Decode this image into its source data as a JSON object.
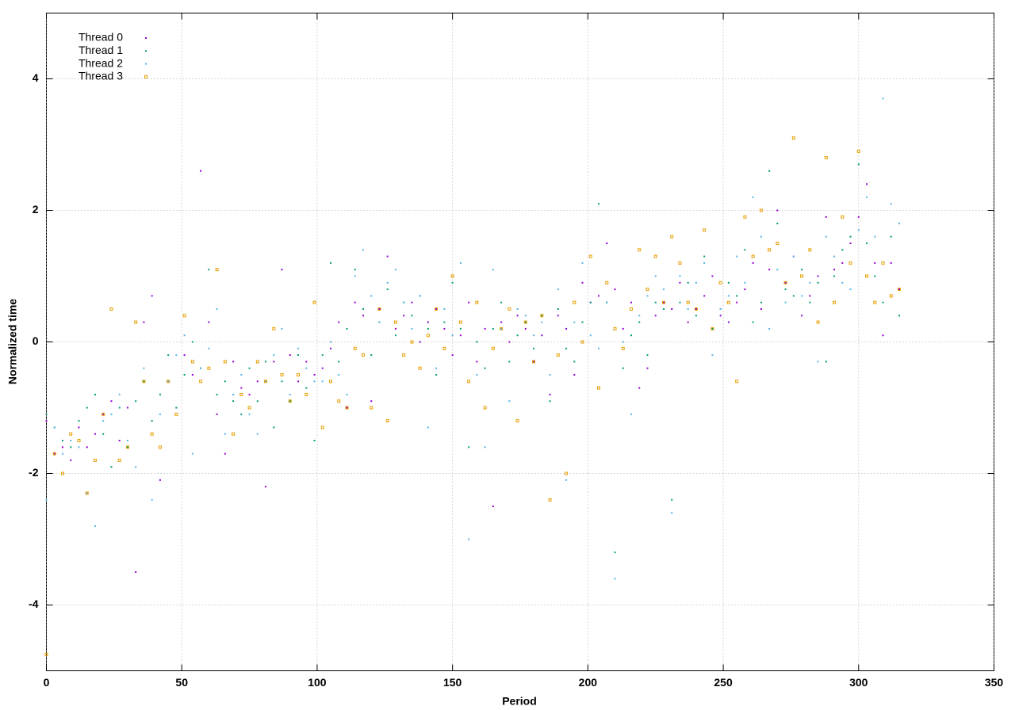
{
  "chart_data": {
    "type": "scatter",
    "xlabel": "Period",
    "ylabel": "Normalized time",
    "xlim": [
      0,
      350
    ],
    "ylim": [
      -5,
      5
    ],
    "xticks": [
      0,
      50,
      100,
      150,
      200,
      250,
      300,
      350
    ],
    "yticks": [
      -4,
      -2,
      0,
      2,
      4
    ],
    "grid": true,
    "legend": "upper-left",
    "x": [
      0,
      3,
      6,
      9,
      12,
      15,
      18,
      21,
      24,
      27,
      30,
      33,
      36,
      39,
      42,
      45,
      48,
      51,
      54,
      57,
      60,
      63,
      66,
      69,
      72,
      75,
      78,
      81,
      84,
      87,
      90,
      93,
      96,
      99,
      102,
      105,
      108,
      111,
      114,
      117,
      120,
      123,
      126,
      129,
      132,
      135,
      138,
      141,
      144,
      147,
      150,
      153,
      156,
      159,
      162,
      165,
      168,
      171,
      174,
      177,
      180,
      183,
      186,
      189,
      192,
      195,
      198,
      201,
      204,
      207,
      210,
      213,
      216,
      219,
      222,
      225,
      228,
      231,
      234,
      237,
      240,
      243,
      246,
      249,
      252,
      255,
      258,
      261,
      264,
      267,
      270,
      273,
      276,
      279,
      282,
      285,
      288,
      291,
      294,
      297,
      300,
      303,
      306,
      309,
      312,
      315
    ],
    "series": [
      {
        "name": "Thread 0",
        "color": "#9400d3",
        "marker": "dot",
        "values": [
          -1.2,
          -1.7,
          -1.6,
          -1.8,
          -1.3,
          -1.6,
          -1.4,
          -1.1,
          -0.9,
          -1.5,
          -1.0,
          -3.5,
          0.3,
          0.7,
          -2.1,
          -0.6,
          -1.0,
          -0.2,
          -0.5,
          2.6,
          0.3,
          -1.1,
          -1.7,
          -0.3,
          -0.7,
          -0.8,
          -0.6,
          -2.2,
          -0.3,
          1.1,
          -0.2,
          -0.6,
          -0.3,
          -0.5,
          -0.4,
          -0.1,
          0.3,
          -1.0,
          0.6,
          0.4,
          -0.9,
          0.5,
          1.3,
          0.2,
          0.4,
          0.6,
          0.0,
          0.3,
          0.5,
          0.2,
          -0.2,
          0.1,
          0.6,
          -0.3,
          0.2,
          -2.5,
          0.3,
          0.0,
          0.4,
          0.2,
          -0.3,
          0.1,
          -0.8,
          0.4,
          0.2,
          -0.5,
          0.9,
          0.6,
          0.7,
          1.5,
          0.8,
          0.2,
          0.6,
          -0.7,
          -0.4,
          0.4,
          0.6,
          0.5,
          0.9,
          0.3,
          0.5,
          0.7,
          1.0,
          0.4,
          0.3,
          0.6,
          0.8,
          1.2,
          0.5,
          1.1,
          2.0,
          0.9,
          1.3,
          0.4,
          0.7,
          1.0,
          1.9,
          1.1,
          1.2,
          1.5,
          1.9,
          2.4,
          1.2,
          0.1,
          1.2,
          0.8
        ]
      },
      {
        "name": "Thread 1",
        "color": "#009e73",
        "marker": "dot",
        "values": [
          -1.1,
          -1.3,
          -1.5,
          -1.6,
          -1.2,
          -1.0,
          -0.8,
          -1.4,
          -1.9,
          -1.0,
          -1.6,
          -0.9,
          -0.6,
          -1.2,
          -0.8,
          -0.2,
          -1.0,
          -0.5,
          0.0,
          -0.4,
          1.1,
          -0.8,
          -0.6,
          -0.9,
          -1.1,
          -0.4,
          -0.9,
          -0.3,
          -1.3,
          -0.6,
          -0.9,
          -0.2,
          -0.7,
          -1.5,
          -0.2,
          1.2,
          -0.3,
          0.2,
          1.1,
          0.5,
          -0.2,
          0.3,
          0.8,
          0.1,
          0.6,
          0.4,
          0.7,
          0.2,
          -0.5,
          0.3,
          0.9,
          0.2,
          -1.6,
          0.0,
          -0.4,
          0.2,
          0.6,
          -0.3,
          0.1,
          0.3,
          -0.1,
          0.4,
          -0.9,
          0.5,
          -0.1,
          -0.3,
          0.3,
          0.6,
          2.1,
          0.6,
          -3.2,
          -0.4,
          0.1,
          0.3,
          -0.2,
          0.6,
          0.5,
          -2.4,
          0.6,
          0.9,
          0.4,
          1.3,
          0.2,
          0.5,
          0.9,
          0.7,
          1.4,
          0.3,
          0.6,
          2.6,
          1.8,
          0.8,
          0.7,
          1.1,
          0.6,
          0.9,
          -0.3,
          1.0,
          1.4,
          1.6,
          2.7,
          1.5,
          1.0,
          0.6,
          1.6,
          0.4
        ]
      },
      {
        "name": "Thread 2",
        "color": "#56b4e9",
        "marker": "dot",
        "values": [
          -2.4,
          -1.3,
          -1.7,
          -1.5,
          -1.6,
          -2.3,
          -2.8,
          -1.2,
          -1.1,
          -0.8,
          -1.5,
          -1.9,
          -0.4,
          -2.4,
          -1.1,
          -0.6,
          -0.2,
          0.1,
          -1.7,
          -0.4,
          -0.1,
          0.5,
          -1.4,
          -0.8,
          -0.5,
          -1.1,
          -1.4,
          -0.6,
          -0.2,
          0.2,
          -0.8,
          -0.1,
          -0.4,
          -0.6,
          -0.6,
          0.0,
          -0.5,
          -0.8,
          1.0,
          1.4,
          0.7,
          0.3,
          0.9,
          1.1,
          0.6,
          0.2,
          0.7,
          -1.3,
          -0.4,
          0.5,
          0.1,
          1.2,
          -3.0,
          -0.5,
          -1.6,
          1.1,
          0.2,
          -0.9,
          0.5,
          0.4,
          0.1,
          0.3,
          -0.5,
          0.8,
          -2.1,
          0.3,
          1.2,
          0.1,
          -0.1,
          0.6,
          -3.6,
          0.0,
          -1.1,
          0.4,
          0.7,
          1.0,
          0.8,
          -2.6,
          1.0,
          0.5,
          0.9,
          1.2,
          -0.2,
          0.5,
          0.7,
          1.3,
          0.9,
          2.2,
          1.6,
          0.2,
          1.1,
          0.6,
          1.3,
          0.7,
          0.9,
          -0.3,
          1.6,
          1.3,
          0.9,
          0.8,
          1.7,
          2.2,
          1.6,
          3.7,
          2.1,
          1.8
        ]
      },
      {
        "name": "Thread 3",
        "color": "#e69f00",
        "marker": "square",
        "values": [
          -4.75,
          -1.7,
          -2.0,
          -1.4,
          -1.5,
          -2.3,
          -1.8,
          -1.1,
          0.5,
          -1.8,
          -1.6,
          0.3,
          -0.6,
          -1.4,
          -1.6,
          -0.6,
          -1.1,
          0.4,
          -0.3,
          -0.6,
          -0.4,
          1.1,
          -0.3,
          -1.4,
          -0.8,
          -1.0,
          -0.3,
          -0.6,
          0.2,
          -0.5,
          -0.9,
          -0.5,
          -0.8,
          0.6,
          -1.3,
          -0.6,
          -0.9,
          -1.0,
          -0.1,
          -0.2,
          -1.0,
          0.5,
          -1.2,
          0.3,
          -0.2,
          0.0,
          -0.4,
          0.1,
          0.5,
          -0.1,
          1.0,
          0.3,
          -0.6,
          0.6,
          -1.0,
          -0.1,
          0.2,
          0.5,
          -1.2,
          0.3,
          -0.3,
          0.4,
          -2.4,
          -0.2,
          -2.0,
          0.6,
          0.0,
          1.3,
          -0.7,
          0.9,
          0.2,
          -0.1,
          0.5,
          1.4,
          0.8,
          1.3,
          0.6,
          1.6,
          1.2,
          0.6,
          0.5,
          1.7,
          0.2,
          0.9,
          0.6,
          -0.6,
          1.9,
          1.3,
          2.0,
          1.4,
          1.5,
          0.9,
          3.1,
          1.0,
          1.4,
          0.3,
          2.8,
          0.6,
          1.9,
          1.2,
          2.9,
          1.0,
          0.6,
          1.2,
          0.7,
          0.8
        ]
      }
    ]
  }
}
